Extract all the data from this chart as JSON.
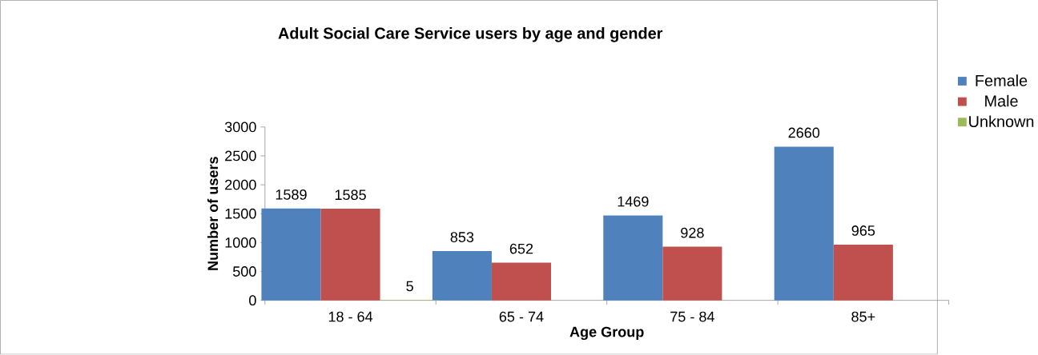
{
  "chart_data": {
    "type": "bar",
    "title": "Adult Social Care Service users by age and gender",
    "xlabel": "Age Group",
    "ylabel": "Number of users",
    "categories": [
      "18 - 64",
      "65 - 74",
      "75 - 84",
      "85+"
    ],
    "series": [
      {
        "name": "Female",
        "color": "#4f81bd",
        "values": [
          1589,
          853,
          1469,
          2660
        ],
        "value_labels": [
          "1589",
          "853",
          "1469",
          "2660"
        ]
      },
      {
        "name": "Male",
        "color": "#c0504d",
        "values": [
          1585,
          652,
          928,
          965
        ],
        "value_labels": [
          "1585",
          "652",
          "928",
          "965"
        ]
      },
      {
        "name": "Unknown",
        "color": "#9bbb59",
        "values": [
          5,
          null,
          null,
          null
        ],
        "value_labels": [
          "5",
          null,
          null,
          null
        ]
      }
    ],
    "ylim": [
      0,
      3000
    ],
    "yticks": [
      0,
      500,
      1000,
      1500,
      2000,
      2500,
      3000
    ],
    "grid": false,
    "legend": "top right"
  }
}
